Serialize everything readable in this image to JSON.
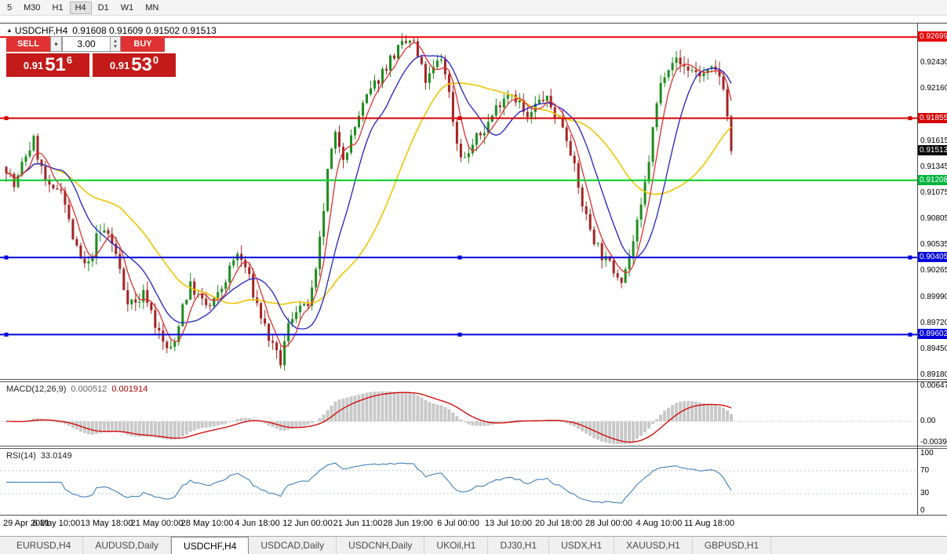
{
  "toolbar": {
    "timeframes": [
      {
        "label": "5",
        "active": false
      },
      {
        "label": "M30",
        "active": false
      },
      {
        "label": "H1",
        "active": false
      },
      {
        "label": "H4",
        "active": true
      },
      {
        "label": "D1",
        "active": false
      },
      {
        "label": "W1",
        "active": false
      },
      {
        "label": "MN",
        "active": false
      }
    ]
  },
  "chart_header": {
    "collapse_icon": "▲",
    "title": "USDCHF,H4",
    "ohlc": "0.91608 0.91609 0.91502 0.91513"
  },
  "trade_panel": {
    "sell_label": "SELL",
    "buy_label": "BUY",
    "volume": "3.00",
    "dropdown_icon": "▾",
    "spinner_up": "▴",
    "spinner_down": "▾",
    "sell_price": {
      "prefix": "0.91",
      "pips": "51",
      "point": "6"
    },
    "buy_price": {
      "prefix": "0.91",
      "pips": "53",
      "point": "0"
    }
  },
  "macd_panel": {
    "name": "MACD(12,26,9)",
    "value_main": "0.000512",
    "value_signal": "0.001914"
  },
  "rsi_panel": {
    "name": "RSI(14)",
    "value": "33.0149"
  },
  "tabs": [
    {
      "label": "EURUSD,H4",
      "active": false
    },
    {
      "label": "AUDUSD,Daily",
      "active": false
    },
    {
      "label": "USDCHF,H4",
      "active": true
    },
    {
      "label": "USDCAD,Daily",
      "active": false
    },
    {
      "label": "USDCNH,Daily",
      "active": false
    },
    {
      "label": "UKOil,H1",
      "active": false
    },
    {
      "label": "DJ30,H1",
      "active": false
    },
    {
      "label": "USDX,H1",
      "active": false
    },
    {
      "label": "XAUUSD,H1",
      "active": false
    },
    {
      "label": "GBPUSD,H1",
      "active": false
    }
  ],
  "chart_data": {
    "type": "candlestick",
    "symbol": "USDCHF",
    "timeframe": "H4",
    "candle_count": 186,
    "main_axis": {
      "min": 0.8914,
      "max": 0.9284,
      "ticks": [
        0.9243,
        0.9216,
        0.91615,
        0.91345,
        0.91075,
        0.90805,
        0.90535,
        0.90265,
        0.8999,
        0.8972,
        0.8945,
        0.8918
      ]
    },
    "axis_labels": [
      {
        "text": "0.92699",
        "price": 0.92699,
        "bg": "#e60000"
      },
      {
        "text": "0.91855",
        "price": 0.91855,
        "bg": "#d60000"
      },
      {
        "text": "0.91513",
        "price": 0.91513,
        "bg": "#000000"
      },
      {
        "text": "0.91208",
        "price": 0.91208,
        "bg": "#00b33c"
      },
      {
        "text": "0.90405",
        "price": 0.90405,
        "bg": "#0000dd"
      },
      {
        "text": "0.89602",
        "price": 0.89602,
        "bg": "#0000dd"
      }
    ],
    "h_lines": [
      {
        "price": 0.92699,
        "color": "#ee0000",
        "width": 2,
        "handles": false
      },
      {
        "price": 0.91855,
        "color": "#d60000",
        "width": 2,
        "handles": true
      },
      {
        "price": 0.91208,
        "color": "#00cc22",
        "width": 2,
        "handles": false
      },
      {
        "price": 0.90405,
        "color": "#0000dd",
        "width": 2,
        "handles": true
      },
      {
        "price": 0.89602,
        "color": "#0000dd",
        "width": 2,
        "handles": true
      }
    ],
    "candle_colors": {
      "up": "#1e8c1e",
      "down": "#a32424"
    },
    "ma": [
      {
        "name": "ma-slow",
        "period": 30,
        "color": "#f2c500"
      },
      {
        "name": "ma-mid",
        "period": 12,
        "color": "#2020cc"
      },
      {
        "name": "ma-fast",
        "period": 5,
        "color": "#e03030"
      }
    ],
    "macd": {
      "params": [
        12,
        26,
        9
      ],
      "hist_color": "#c8c8c8",
      "signal_color": "#d40000",
      "axis": {
        "max": 0.00647,
        "min": -0.00391,
        "ticks": [
          {
            "v": 0.00647,
            "text": "0.00647"
          },
          {
            "v": 0,
            "text": "0.00"
          },
          {
            "v": -0.00391,
            "text": "-0.00391"
          }
        ]
      }
    },
    "rsi": {
      "period": 14,
      "color": "#2e75b6",
      "levels": [
        70,
        30
      ],
      "axis_ticks": [
        100,
        70,
        30,
        0
      ],
      "last_value": 33.0149
    },
    "forced": {
      "high_t": 0.56,
      "high_price": 0.92699,
      "last_close": 0.91513
    },
    "price_path": [
      [
        0.0,
        0.9135
      ],
      [
        0.012,
        0.9112
      ],
      [
        0.025,
        0.9145
      ],
      [
        0.038,
        0.9162
      ],
      [
        0.05,
        0.9128
      ],
      [
        0.062,
        0.9105
      ],
      [
        0.075,
        0.9118
      ],
      [
        0.088,
        0.9072
      ],
      [
        0.1,
        0.904
      ],
      [
        0.112,
        0.9028
      ],
      [
        0.125,
        0.9062
      ],
      [
        0.138,
        0.907
      ],
      [
        0.152,
        0.9042
      ],
      [
        0.165,
        0.9
      ],
      [
        0.178,
        0.8992
      ],
      [
        0.192,
        0.9005
      ],
      [
        0.205,
        0.8972
      ],
      [
        0.218,
        0.8948
      ],
      [
        0.23,
        0.8942
      ],
      [
        0.242,
        0.899
      ],
      [
        0.255,
        0.9012
      ],
      [
        0.268,
        0.8995
      ],
      [
        0.28,
        0.8988
      ],
      [
        0.292,
        0.9
      ],
      [
        0.305,
        0.9022
      ],
      [
        0.318,
        0.9045
      ],
      [
        0.33,
        0.903
      ],
      [
        0.342,
        0.9
      ],
      [
        0.355,
        0.8972
      ],
      [
        0.368,
        0.8945
      ],
      [
        0.378,
        0.893
      ],
      [
        0.39,
        0.8972
      ],
      [
        0.402,
        0.8992
      ],
      [
        0.412,
        0.8985
      ],
      [
        0.425,
        0.901
      ],
      [
        0.435,
        0.9072
      ],
      [
        0.445,
        0.914
      ],
      [
        0.455,
        0.9168
      ],
      [
        0.465,
        0.9148
      ],
      [
        0.475,
        0.9162
      ],
      [
        0.487,
        0.919
      ],
      [
        0.5,
        0.921
      ],
      [
        0.512,
        0.9225
      ],
      [
        0.525,
        0.9242
      ],
      [
        0.538,
        0.9255
      ],
      [
        0.55,
        0.9262
      ],
      [
        0.56,
        0.9268
      ],
      [
        0.57,
        0.9242
      ],
      [
        0.58,
        0.9222
      ],
      [
        0.592,
        0.924
      ],
      [
        0.602,
        0.925
      ],
      [
        0.612,
        0.9205
      ],
      [
        0.622,
        0.9158
      ],
      [
        0.632,
        0.9142
      ],
      [
        0.645,
        0.916
      ],
      [
        0.658,
        0.9172
      ],
      [
        0.67,
        0.9188
      ],
      [
        0.682,
        0.9205
      ],
      [
        0.695,
        0.9215
      ],
      [
        0.708,
        0.9202
      ],
      [
        0.718,
        0.9182
      ],
      [
        0.73,
        0.9198
      ],
      [
        0.742,
        0.9208
      ],
      [
        0.755,
        0.9192
      ],
      [
        0.768,
        0.9178
      ],
      [
        0.778,
        0.9155
      ],
      [
        0.788,
        0.9115
      ],
      [
        0.8,
        0.9082
      ],
      [
        0.812,
        0.9058
      ],
      [
        0.825,
        0.9038
      ],
      [
        0.838,
        0.9028
      ],
      [
        0.85,
        0.902
      ],
      [
        0.862,
        0.9048
      ],
      [
        0.875,
        0.9088
      ],
      [
        0.886,
        0.914
      ],
      [
        0.896,
        0.9195
      ],
      [
        0.906,
        0.9232
      ],
      [
        0.918,
        0.9248
      ],
      [
        0.932,
        0.924
      ],
      [
        0.945,
        0.9236
      ],
      [
        0.96,
        0.923
      ],
      [
        0.975,
        0.9234
      ],
      [
        0.988,
        0.9228
      ],
      [
        1.0,
        0.9152
      ]
    ],
    "time_labels": [
      "29 Apr 2021",
      "6 May 10:00",
      "13 May 18:00",
      "21 May 00:00",
      "28 May 10:00",
      "4 Jun 18:00",
      "12 Jun 00:00",
      "21 Jun 11:00",
      "28 Jun 19:00",
      "6 Jul 00:00",
      "13 Jul 10:00",
      "20 Jul 18:00",
      "28 Jul 00:00",
      "4 Aug 10:00",
      "11 Aug 18:00"
    ]
  }
}
